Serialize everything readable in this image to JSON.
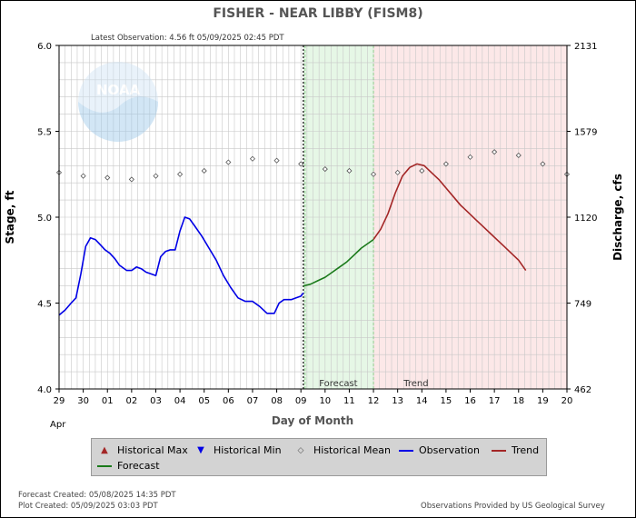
{
  "title": "FISHER - NEAR LIBBY  (FISM8)",
  "latest_observation": "Latest Observation: 4.56 ft 05/09/2025 02:45 PDT",
  "logo_text": "NOAA",
  "colors": {
    "observation": "#0000e6",
    "forecast": "#1a7a1a",
    "trend": "#a32626",
    "forecast_bg": "#e6f7e6",
    "trend_bg": "#fce8e8",
    "grid": "#c8c8c8"
  },
  "legend": {
    "historical_max": "Historical Max",
    "historical_min": "Historical Min",
    "historical_mean": "Historical Mean",
    "observation": "Observation",
    "trend": "Trend",
    "forecast": "Forecast"
  },
  "footer": {
    "forecast_created": "Forecast Created: 05/08/2025 14:35 PDT",
    "plot_created": "Plot Created: 05/09/2025 03:03 PDT",
    "source": "Observations Provided by US Geological Survey"
  },
  "chart_data": {
    "type": "line",
    "title": "FISHER - NEAR LIBBY  (FISM8)",
    "xlabel": "Day of Month",
    "xlabel_sub": "Apr",
    "ylabel": "Stage, ft",
    "ylabel_right": "Discharge, cfs",
    "xlim": [
      0,
      21
    ],
    "ylim": [
      4.0,
      6.0
    ],
    "x_ticks": [
      "29",
      "30",
      "01",
      "02",
      "03",
      "04",
      "05",
      "06",
      "07",
      "08",
      "09",
      "10",
      "11",
      "12",
      "13",
      "14",
      "15",
      "16",
      "17",
      "18",
      "19",
      "20"
    ],
    "y_ticks": [
      "4.0",
      "4.5",
      "5.0",
      "5.5",
      "6.0"
    ],
    "y_right_ticks": [
      {
        "stage": 4.0,
        "label": "462"
      },
      {
        "stage": 4.5,
        "label": "749"
      },
      {
        "stage": 5.0,
        "label": "1120"
      },
      {
        "stage": 5.5,
        "label": "1579"
      },
      {
        "stage": 6.0,
        "label": "2131"
      }
    ],
    "grid": true,
    "forecast_region": {
      "start": 10.1,
      "end": 13.0,
      "label": "Forecast"
    },
    "trend_region": {
      "start": 13.0,
      "end": 21.0,
      "label": "Trend"
    },
    "observation_divider": 10.1,
    "series": [
      {
        "name": "Historical Mean",
        "style": "diamond",
        "x": [
          0,
          1,
          2,
          3,
          4,
          5,
          6,
          7,
          8,
          9,
          10,
          11,
          12,
          13,
          14,
          15,
          16,
          17,
          18,
          19,
          20,
          21
        ],
        "y": [
          5.26,
          5.24,
          5.23,
          5.22,
          5.24,
          5.25,
          5.27,
          5.32,
          5.34,
          5.33,
          5.31,
          5.28,
          5.27,
          5.25,
          5.26,
          5.27,
          5.31,
          5.35,
          5.38,
          5.36,
          5.31,
          5.25
        ]
      },
      {
        "name": "Observation",
        "style": "line",
        "x": [
          0.0,
          0.25,
          0.5,
          0.7,
          0.9,
          1.1,
          1.3,
          1.5,
          1.7,
          1.9,
          2.1,
          2.3,
          2.5,
          2.8,
          3.0,
          3.2,
          3.4,
          3.6,
          3.8,
          4.0,
          4.2,
          4.4,
          4.6,
          4.8,
          5.0,
          5.2,
          5.4,
          5.6,
          5.9,
          6.2,
          6.5,
          6.8,
          7.1,
          7.4,
          7.7,
          8.0,
          8.3,
          8.6,
          8.9,
          9.1,
          9.3,
          9.6,
          9.8,
          10.0,
          10.1
        ],
        "y": [
          4.43,
          4.46,
          4.5,
          4.53,
          4.67,
          4.83,
          4.88,
          4.87,
          4.84,
          4.81,
          4.79,
          4.76,
          4.72,
          4.69,
          4.69,
          4.71,
          4.7,
          4.68,
          4.67,
          4.66,
          4.77,
          4.8,
          4.81,
          4.81,
          4.92,
          5.0,
          4.99,
          4.95,
          4.89,
          4.82,
          4.75,
          4.66,
          4.59,
          4.53,
          4.51,
          4.51,
          4.48,
          4.44,
          4.44,
          4.5,
          4.52,
          4.52,
          4.53,
          4.54,
          4.56
        ]
      },
      {
        "name": "Forecast",
        "style": "line",
        "x": [
          10.1,
          10.4,
          10.7,
          11.0,
          11.3,
          11.6,
          11.9,
          12.2,
          12.5,
          12.8,
          13.0
        ],
        "y": [
          4.6,
          4.61,
          4.63,
          4.65,
          4.68,
          4.71,
          4.74,
          4.78,
          4.82,
          4.85,
          4.87
        ]
      },
      {
        "name": "Trend",
        "style": "line",
        "x": [
          13.0,
          13.3,
          13.6,
          13.9,
          14.2,
          14.5,
          14.8,
          15.1,
          15.4,
          15.7,
          16.0,
          16.3,
          16.6,
          16.9,
          17.2,
          17.5,
          17.8,
          18.1,
          18.4,
          18.7,
          19.0,
          19.3
        ],
        "y": [
          4.87,
          4.93,
          5.02,
          5.14,
          5.24,
          5.29,
          5.31,
          5.3,
          5.26,
          5.22,
          5.17,
          5.12,
          5.07,
          5.03,
          4.99,
          4.95,
          4.91,
          4.87,
          4.83,
          4.79,
          4.75,
          4.69
        ]
      }
    ]
  }
}
